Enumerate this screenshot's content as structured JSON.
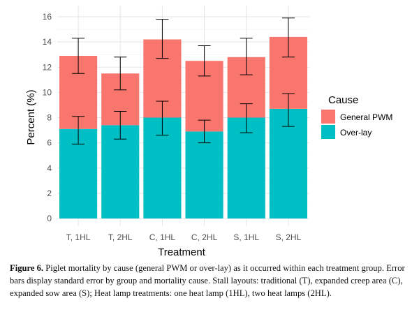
{
  "chart_data": {
    "type": "bar",
    "stacked": true,
    "categories": [
      "T, 1HL",
      "T, 2HL",
      "C, 1HL",
      "C, 2HL",
      "S, 1HL",
      "S, 2HL"
    ],
    "series": [
      {
        "name": "Over-lay",
        "color": "#00BFC4",
        "values": [
          7.1,
          7.4,
          8.0,
          6.9,
          8.0,
          8.7
        ],
        "error_low": [
          5.9,
          6.3,
          6.6,
          6.0,
          6.8,
          7.3
        ],
        "error_high": [
          8.1,
          8.5,
          9.3,
          7.8,
          9.1,
          9.9
        ]
      },
      {
        "name": "General PWM",
        "color": "#F8766D",
        "values": [
          5.8,
          4.1,
          6.2,
          5.6,
          4.8,
          5.7
        ],
        "error_low": [
          11.5,
          10.2,
          12.7,
          11.3,
          11.4,
          12.8
        ],
        "error_high": [
          14.3,
          12.8,
          15.8,
          13.7,
          14.3,
          15.9
        ]
      }
    ],
    "xlabel": "Treatment",
    "ylabel": "Percent (%)",
    "ylim": [
      0,
      16
    ],
    "yticks": [
      "0",
      "2",
      "4",
      "6",
      "8",
      "10",
      "12",
      "14",
      "16"
    ],
    "legend": {
      "title": "Cause",
      "position": "right",
      "entries": [
        "General PWM",
        "Over-lay"
      ]
    },
    "grid": true
  },
  "caption": {
    "label": "Figure 6.",
    "text": "Piglet mortality by cause (general PWM or over-lay) as it occurred within each treatment group. Error bars display standard error by group and mortality cause. Stall layouts: traditional (T), expanded creep area (C), expanded sow area (S); Heat lamp treatments: one heat lamp (1HL), two heat lamps (2HL)."
  }
}
